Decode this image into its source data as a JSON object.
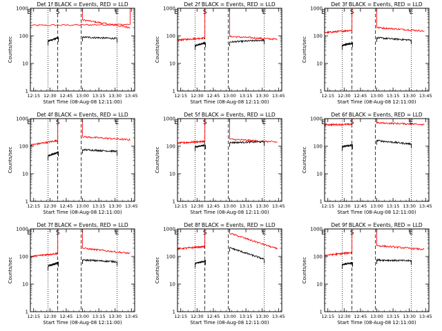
{
  "figure": {
    "panel_x_positions": [
      0,
      213,
      426
    ],
    "panel_y_positions": [
      0,
      160,
      320
    ]
  },
  "chart_data": [
    {
      "title": "Det 1f BLACK = Events, RED = LLD",
      "xlabel": "Start Time (08-Aug-08 12:11:00)",
      "ylabel": "Counts/sec",
      "type": "line",
      "xlim": [
        12.2,
        13.8
      ],
      "ylim": [
        1,
        1000
      ],
      "yscale": "log",
      "xticks": [
        "12:15",
        "12:30",
        "12:45",
        "13:00",
        "13:15",
        "13:30",
        "13:45"
      ],
      "yticks": [
        "1",
        "10",
        "100",
        "1000"
      ],
      "markers": [
        {
          "label": "E",
          "x": 12.18
        },
        {
          "label": "S",
          "x": 12.62
        },
        {
          "label": "E",
          "x": 13.53
        }
      ],
      "vlines_dotted": [
        12.47,
        13.53
      ],
      "vlines_dashed": [
        12.62,
        12.98
      ],
      "series": [
        {
          "color": "#ff0000",
          "segments": [
            [
              12.2,
              13.73,
              240,
              260
            ],
            [
              13.0,
              13.73,
              380,
              200
            ]
          ]
        },
        {
          "color": "#000000",
          "segments": [
            [
              12.47,
              12.63,
              65,
              85
            ],
            [
              13.0,
              13.53,
              90,
              80
            ]
          ]
        }
      ]
    },
    {
      "title": "Det 2f BLACK = Events, RED = LLD",
      "xlabel": "Start Time (08-Aug-08 12:11:00)",
      "ylabel": "Counts/sec",
      "type": "line",
      "xlim": [
        12.2,
        13.8
      ],
      "ylim": [
        1,
        1000
      ],
      "yscale": "log",
      "xticks": [
        "12:15",
        "12:30",
        "12:45",
        "13:00",
        "13:15",
        "13:30",
        "13:45"
      ],
      "yticks": [
        "1",
        "10",
        "100",
        "1000"
      ],
      "markers": [
        {
          "label": "E",
          "x": 12.18
        },
        {
          "label": "S",
          "x": 12.62
        },
        {
          "label": "E",
          "x": 13.53
        }
      ],
      "vlines_dotted": [
        12.47,
        13.53
      ],
      "vlines_dashed": [
        12.62,
        12.98
      ],
      "series": [
        {
          "color": "#ff0000",
          "segments": [
            [
              12.2,
              12.62,
              70,
              85
            ],
            [
              13.0,
              13.73,
              95,
              75
            ]
          ]
        },
        {
          "color": "#000000",
          "segments": [
            [
              12.47,
              12.63,
              45,
              55
            ],
            [
              13.0,
              13.53,
              60,
              70
            ]
          ]
        }
      ]
    },
    {
      "title": "Det 3f BLACK = Events, RED = LLD",
      "xlabel": "Start Time (08-Aug-08 12:11:00)",
      "ylabel": "Counts/sec",
      "type": "line",
      "xlim": [
        12.2,
        13.8
      ],
      "ylim": [
        1,
        1000
      ],
      "yscale": "log",
      "xticks": [
        "12:15",
        "12:30",
        "12:45",
        "13:00",
        "13:15",
        "13:30",
        "13:45"
      ],
      "yticks": [
        "1",
        "10",
        "100",
        "1000"
      ],
      "markers": [
        {
          "label": "E",
          "x": 12.18
        },
        {
          "label": "S",
          "x": 12.62
        },
        {
          "label": "E",
          "x": 13.53
        }
      ],
      "vlines_dotted": [
        12.47,
        13.53
      ],
      "vlines_dashed": [
        12.62,
        12.98
      ],
      "series": [
        {
          "color": "#ff0000",
          "segments": [
            [
              12.2,
              12.62,
              130,
              160
            ],
            [
              13.0,
              13.73,
              200,
              150
            ]
          ]
        },
        {
          "color": "#000000",
          "segments": [
            [
              12.47,
              12.63,
              45,
              55
            ],
            [
              13.0,
              13.53,
              85,
              70
            ]
          ]
        }
      ]
    },
    {
      "title": "Det 4f BLACK = Events, RED = LLD",
      "xlabel": "Start Time (08-Aug-08 12:11:00)",
      "ylabel": "Counts/sec",
      "type": "line",
      "xlim": [
        12.2,
        13.8
      ],
      "ylim": [
        1,
        1000
      ],
      "yscale": "log",
      "xticks": [
        "12:15",
        "12:30",
        "12:45",
        "13:00",
        "13:15",
        "13:30",
        "13:45"
      ],
      "yticks": [
        "1",
        "10",
        "100",
        "1000"
      ],
      "markers": [
        {
          "label": "E",
          "x": 12.18
        },
        {
          "label": "S",
          "x": 12.62
        },
        {
          "label": "E",
          "x": 13.53
        }
      ],
      "vlines_dotted": [
        12.47,
        13.53
      ],
      "vlines_dashed": [
        12.62,
        12.98
      ],
      "series": [
        {
          "color": "#ff0000",
          "segments": [
            [
              12.2,
              12.62,
              110,
              160
            ],
            [
              13.0,
              13.73,
              220,
              170
            ]
          ]
        },
        {
          "color": "#000000",
          "segments": [
            [
              12.47,
              12.63,
              45,
              60
            ],
            [
              13.0,
              13.53,
              75,
              65
            ]
          ]
        }
      ]
    },
    {
      "title": "Det 5f BLACK = Events, RED = LLD",
      "xlabel": "Start Time (08-Aug-08 12:11:00)",
      "ylabel": "Counts/sec",
      "type": "line",
      "xlim": [
        12.2,
        13.8
      ],
      "ylim": [
        1,
        1000
      ],
      "yscale": "log",
      "xticks": [
        "12:15",
        "12:30",
        "12:45",
        "13:00",
        "13:15",
        "13:30",
        "13:45"
      ],
      "yticks": [
        "1",
        "10",
        "100",
        "1000"
      ],
      "markers": [
        {
          "label": "E",
          "x": 12.18
        },
        {
          "label": "S",
          "x": 12.62
        },
        {
          "label": "E",
          "x": 13.53
        }
      ],
      "vlines_dotted": [
        12.47,
        13.53
      ],
      "vlines_dashed": [
        12.62,
        12.98
      ],
      "series": [
        {
          "color": "#ff0000",
          "segments": [
            [
              12.2,
              12.62,
              130,
              150
            ],
            [
              13.0,
              13.73,
              180,
              140
            ]
          ]
        },
        {
          "color": "#000000",
          "segments": [
            [
              12.47,
              12.63,
              95,
              110
            ],
            [
              13.0,
              13.53,
              135,
              145
            ]
          ]
        }
      ]
    },
    {
      "title": "Det 6f BLACK = Events, RED = LLD",
      "xlabel": "Start Time (08-Aug-08 12:11:00)",
      "ylabel": "Counts/sec",
      "type": "line",
      "xlim": [
        12.2,
        13.8
      ],
      "ylim": [
        1,
        1000
      ],
      "yscale": "log",
      "xticks": [
        "12:15",
        "12:30",
        "12:45",
        "13:00",
        "13:15",
        "13:30",
        "13:45"
      ],
      "yticks": [
        "1",
        "10",
        "100",
        "1000"
      ],
      "markers": [
        {
          "label": "E",
          "x": 12.18
        },
        {
          "label": "S",
          "x": 12.62
        },
        {
          "label": "E",
          "x": 13.53
        }
      ],
      "vlines_dotted": [
        12.47,
        13.53
      ],
      "vlines_dashed": [
        12.62,
        12.98
      ],
      "series": [
        {
          "color": "#ff0000",
          "segments": [
            [
              12.2,
              12.62,
              600,
              620
            ],
            [
              13.0,
              13.73,
              700,
              620
            ]
          ]
        },
        {
          "color": "#000000",
          "segments": [
            [
              12.47,
              12.63,
              95,
              110
            ],
            [
              13.0,
              13.53,
              160,
              120
            ]
          ]
        }
      ]
    },
    {
      "title": "Det 7f BLACK = Events, RED = LLD",
      "xlabel": "Start Time (08-Aug-08 12:11:00)",
      "ylabel": "Counts/sec",
      "type": "line",
      "xlim": [
        12.2,
        13.8
      ],
      "ylim": [
        1,
        1000
      ],
      "yscale": "log",
      "xticks": [
        "12:15",
        "12:30",
        "12:45",
        "13:00",
        "13:15",
        "13:30",
        "13:45"
      ],
      "yticks": [
        "1",
        "10",
        "100",
        "1000"
      ],
      "markers": [
        {
          "label": "E",
          "x": 12.18
        },
        {
          "label": "S",
          "x": 12.62
        },
        {
          "label": "E",
          "x": 13.53
        }
      ],
      "vlines_dotted": [
        12.47,
        13.53
      ],
      "vlines_dashed": [
        12.62,
        12.98
      ],
      "series": [
        {
          "color": "#ff0000",
          "segments": [
            [
              12.2,
              12.62,
              100,
              130
            ],
            [
              13.0,
              13.73,
              200,
              130
            ]
          ]
        },
        {
          "color": "#000000",
          "segments": [
            [
              12.47,
              12.63,
              45,
              60
            ],
            [
              13.0,
              13.53,
              75,
              65
            ]
          ]
        }
      ]
    },
    {
      "title": "Det 8f BLACK = Events, RED = LLD",
      "xlabel": "Start Time (08-Aug-08 12:11:00)",
      "ylabel": "Counts/sec",
      "type": "line",
      "xlim": [
        12.2,
        13.8
      ],
      "ylim": [
        1,
        1000
      ],
      "yscale": "log",
      "xticks": [
        "12:15",
        "12:30",
        "12:45",
        "13:00",
        "13:15",
        "13:30",
        "13:45"
      ],
      "yticks": [
        "1",
        "10",
        "100",
        "1000"
      ],
      "markers": [
        {
          "label": "E",
          "x": 12.18
        },
        {
          "label": "S",
          "x": 12.62
        },
        {
          "label": "E",
          "x": 13.53
        }
      ],
      "vlines_dotted": [
        12.47,
        13.53
      ],
      "vlines_dashed": [
        12.62,
        12.98
      ],
      "series": [
        {
          "color": "#ff0000",
          "segments": [
            [
              12.2,
              12.62,
              190,
              230
            ],
            [
              13.0,
              13.73,
              700,
              190
            ]
          ]
        },
        {
          "color": "#000000",
          "segments": [
            [
              12.47,
              12.63,
              55,
              70
            ],
            [
              13.0,
              13.53,
              210,
              80
            ]
          ]
        }
      ]
    },
    {
      "title": "Det 9f BLACK = Events, RED = LLD",
      "xlabel": "Start Time (08-Aug-08 12:11:00)",
      "ylabel": "Counts/sec",
      "type": "line",
      "xlim": [
        12.2,
        13.8
      ],
      "ylim": [
        1,
        1000
      ],
      "yscale": "log",
      "xticks": [
        "12:15",
        "12:30",
        "12:45",
        "13:00",
        "13:15",
        "13:30",
        "13:45"
      ],
      "yticks": [
        "1",
        "10",
        "100",
        "1000"
      ],
      "markers": [
        {
          "label": "E",
          "x": 12.18
        },
        {
          "label": "S",
          "x": 12.62
        },
        {
          "label": "E",
          "x": 13.53
        }
      ],
      "vlines_dotted": [
        12.47,
        13.53
      ],
      "vlines_dashed": [
        12.62,
        12.98
      ],
      "series": [
        {
          "color": "#ff0000",
          "segments": [
            [
              12.2,
              12.62,
              110,
              140
            ],
            [
              13.0,
              13.73,
              250,
              180
            ]
          ]
        },
        {
          "color": "#000000",
          "segments": [
            [
              12.47,
              12.63,
              50,
              60
            ],
            [
              13.0,
              13.53,
              75,
              70
            ]
          ]
        }
      ]
    }
  ]
}
